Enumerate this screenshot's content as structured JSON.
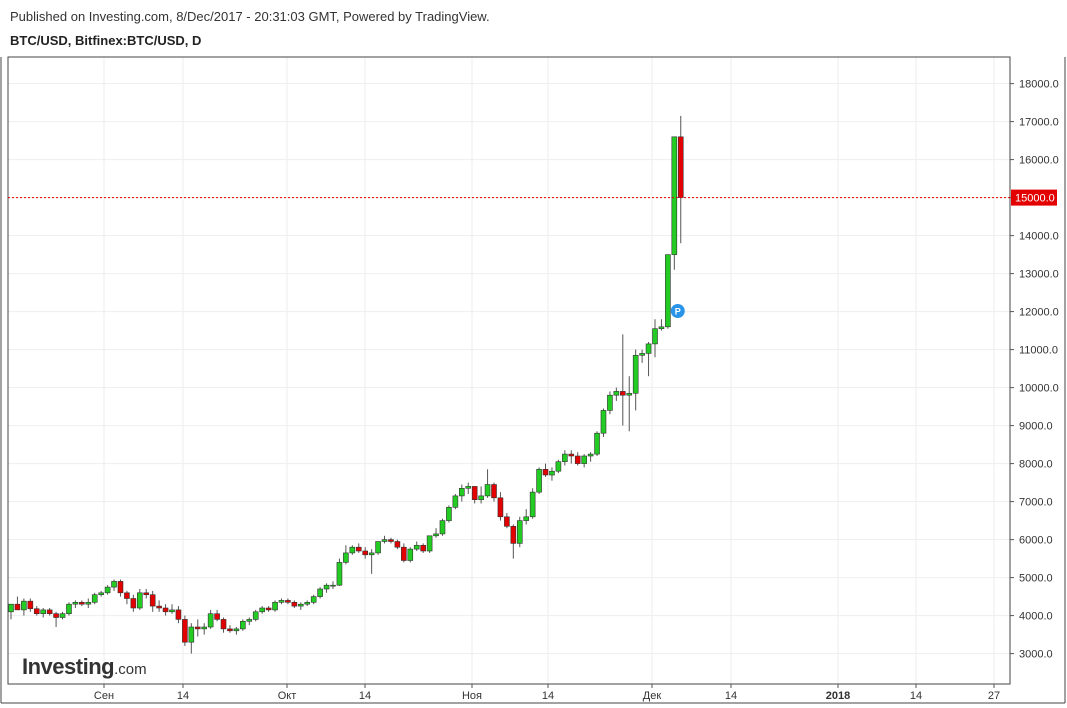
{
  "header": {
    "published": "Published on Investing.com, 8/Dec/2017 - 20:31:03 GMT, Powered by TradingView.",
    "symbol": "BTC/USD, Bitfinex:BTC/USD, D"
  },
  "logo": {
    "main": "Investing",
    "suffix": ".com"
  },
  "colors": {
    "up": "#22cc22",
    "down": "#e30000",
    "wick": "#555555",
    "price_line": "#e30000",
    "marker": "#2a95e8"
  },
  "chart_data": {
    "type": "candlestick",
    "price_label": "15000.0",
    "marker_label": "P",
    "ylim": [
      2200,
      18700
    ],
    "y_ticks": [
      "3000.0",
      "4000.0",
      "5000.0",
      "6000.0",
      "7000.0",
      "8000.0",
      "9000.0",
      "10000.0",
      "11000.0",
      "12000.0",
      "13000.0",
      "14000.0",
      "15000.0",
      "16000.0",
      "17000.0",
      "18000.0"
    ],
    "x_ticks": [
      "Сен",
      "14",
      "Окт",
      "14",
      "Ноя",
      "14",
      "Дек",
      "14",
      "2018",
      "14",
      "27"
    ],
    "candles": [
      {
        "o": 4100,
        "h": 4300,
        "l": 3900,
        "c": 4300
      },
      {
        "o": 4300,
        "h": 4500,
        "l": 4150,
        "c": 4150
      },
      {
        "o": 4150,
        "h": 4450,
        "l": 4000,
        "c": 4380
      },
      {
        "o": 4380,
        "h": 4450,
        "l": 4100,
        "c": 4180
      },
      {
        "o": 4180,
        "h": 4250,
        "l": 4000,
        "c": 4050
      },
      {
        "o": 4050,
        "h": 4200,
        "l": 3950,
        "c": 4150
      },
      {
        "o": 4150,
        "h": 4200,
        "l": 4000,
        "c": 4050
      },
      {
        "o": 4050,
        "h": 4100,
        "l": 3700,
        "c": 3950
      },
      {
        "o": 3950,
        "h": 4100,
        "l": 3900,
        "c": 4050
      },
      {
        "o": 4050,
        "h": 4350,
        "l": 4000,
        "c": 4300
      },
      {
        "o": 4300,
        "h": 4400,
        "l": 4200,
        "c": 4350
      },
      {
        "o": 4350,
        "h": 4400,
        "l": 4250,
        "c": 4300
      },
      {
        "o": 4300,
        "h": 4450,
        "l": 4200,
        "c": 4350
      },
      {
        "o": 4350,
        "h": 4600,
        "l": 4300,
        "c": 4550
      },
      {
        "o": 4550,
        "h": 4650,
        "l": 4500,
        "c": 4600
      },
      {
        "o": 4600,
        "h": 4800,
        "l": 4550,
        "c": 4750
      },
      {
        "o": 4750,
        "h": 4950,
        "l": 4650,
        "c": 4900
      },
      {
        "o": 4900,
        "h": 4950,
        "l": 4500,
        "c": 4600
      },
      {
        "o": 4600,
        "h": 4650,
        "l": 4300,
        "c": 4450
      },
      {
        "o": 4450,
        "h": 4550,
        "l": 4100,
        "c": 4200
      },
      {
        "o": 4200,
        "h": 4700,
        "l": 4150,
        "c": 4600
      },
      {
        "o": 4600,
        "h": 4700,
        "l": 4450,
        "c": 4550
      },
      {
        "o": 4550,
        "h": 4650,
        "l": 4100,
        "c": 4250
      },
      {
        "o": 4250,
        "h": 4400,
        "l": 4100,
        "c": 4200
      },
      {
        "o": 4200,
        "h": 4300,
        "l": 4000,
        "c": 4100
      },
      {
        "o": 4100,
        "h": 4300,
        "l": 4050,
        "c": 4150
      },
      {
        "o": 4150,
        "h": 4250,
        "l": 3800,
        "c": 3900
      },
      {
        "o": 3900,
        "h": 4000,
        "l": 3200,
        "c": 3300
      },
      {
        "o": 3300,
        "h": 3800,
        "l": 3000,
        "c": 3700
      },
      {
        "o": 3700,
        "h": 3900,
        "l": 3450,
        "c": 3650
      },
      {
        "o": 3650,
        "h": 3800,
        "l": 3500,
        "c": 3700
      },
      {
        "o": 3700,
        "h": 4150,
        "l": 3650,
        "c": 4050
      },
      {
        "o": 4050,
        "h": 4150,
        "l": 3850,
        "c": 3900
      },
      {
        "o": 3900,
        "h": 3950,
        "l": 3550,
        "c": 3650
      },
      {
        "o": 3650,
        "h": 3750,
        "l": 3550,
        "c": 3600
      },
      {
        "o": 3600,
        "h": 3700,
        "l": 3500,
        "c": 3650
      },
      {
        "o": 3650,
        "h": 3900,
        "l": 3600,
        "c": 3850
      },
      {
        "o": 3850,
        "h": 3950,
        "l": 3750,
        "c": 3900
      },
      {
        "o": 3900,
        "h": 4150,
        "l": 3850,
        "c": 4100
      },
      {
        "o": 4100,
        "h": 4250,
        "l": 4050,
        "c": 4200
      },
      {
        "o": 4200,
        "h": 4250,
        "l": 4100,
        "c": 4150
      },
      {
        "o": 4150,
        "h": 4400,
        "l": 4100,
        "c": 4350
      },
      {
        "o": 4350,
        "h": 4450,
        "l": 4300,
        "c": 4400
      },
      {
        "o": 4400,
        "h": 4450,
        "l": 4300,
        "c": 4350
      },
      {
        "o": 4350,
        "h": 4400,
        "l": 4200,
        "c": 4250
      },
      {
        "o": 4250,
        "h": 4350,
        "l": 4150,
        "c": 4300
      },
      {
        "o": 4300,
        "h": 4400,
        "l": 4250,
        "c": 4350
      },
      {
        "o": 4350,
        "h": 4550,
        "l": 4300,
        "c": 4500
      },
      {
        "o": 4500,
        "h": 4750,
        "l": 4450,
        "c": 4700
      },
      {
        "o": 4700,
        "h": 4850,
        "l": 4600,
        "c": 4800
      },
      {
        "o": 4800,
        "h": 4900,
        "l": 4700,
        "c": 4800
      },
      {
        "o": 4800,
        "h": 5500,
        "l": 4780,
        "c": 5400
      },
      {
        "o": 5400,
        "h": 5850,
        "l": 5350,
        "c": 5650
      },
      {
        "o": 5650,
        "h": 5850,
        "l": 5600,
        "c": 5800
      },
      {
        "o": 5800,
        "h": 5900,
        "l": 5650,
        "c": 5700
      },
      {
        "o": 5700,
        "h": 5800,
        "l": 5500,
        "c": 5600
      },
      {
        "o": 5600,
        "h": 5750,
        "l": 5100,
        "c": 5650
      },
      {
        "o": 5650,
        "h": 5900,
        "l": 5600,
        "c": 5950
      },
      {
        "o": 5950,
        "h": 6100,
        "l": 5900,
        "c": 6000
      },
      {
        "o": 6000,
        "h": 6050,
        "l": 5900,
        "c": 5950
      },
      {
        "o": 5950,
        "h": 6000,
        "l": 5750,
        "c": 5800
      },
      {
        "o": 5800,
        "h": 5900,
        "l": 5400,
        "c": 5450
      },
      {
        "o": 5450,
        "h": 5800,
        "l": 5400,
        "c": 5750
      },
      {
        "o": 5750,
        "h": 5950,
        "l": 5700,
        "c": 5850
      },
      {
        "o": 5850,
        "h": 5900,
        "l": 5650,
        "c": 5700
      },
      {
        "o": 5700,
        "h": 6100,
        "l": 5650,
        "c": 6100
      },
      {
        "o": 6100,
        "h": 6300,
        "l": 6050,
        "c": 6150
      },
      {
        "o": 6150,
        "h": 6550,
        "l": 6100,
        "c": 6500
      },
      {
        "o": 6500,
        "h": 6900,
        "l": 6450,
        "c": 6850
      },
      {
        "o": 6850,
        "h": 7200,
        "l": 6800,
        "c": 7150
      },
      {
        "o": 7150,
        "h": 7450,
        "l": 7000,
        "c": 7350
      },
      {
        "o": 7350,
        "h": 7500,
        "l": 7200,
        "c": 7400
      },
      {
        "o": 7400,
        "h": 7400,
        "l": 6950,
        "c": 7050
      },
      {
        "o": 7050,
        "h": 7400,
        "l": 6950,
        "c": 7150
      },
      {
        "o": 7150,
        "h": 7850,
        "l": 7100,
        "c": 7450
      },
      {
        "o": 7450,
        "h": 7500,
        "l": 7000,
        "c": 7100
      },
      {
        "o": 7100,
        "h": 7250,
        "l": 6500,
        "c": 6600
      },
      {
        "o": 6600,
        "h": 6700,
        "l": 6300,
        "c": 6350
      },
      {
        "o": 6350,
        "h": 6400,
        "l": 5500,
        "c": 5900
      },
      {
        "o": 5900,
        "h": 6600,
        "l": 5800,
        "c": 6500
      },
      {
        "o": 6500,
        "h": 6800,
        "l": 6400,
        "c": 6600
      },
      {
        "o": 6600,
        "h": 7350,
        "l": 6550,
        "c": 7250
      },
      {
        "o": 7250,
        "h": 7900,
        "l": 7200,
        "c": 7850
      },
      {
        "o": 7850,
        "h": 8000,
        "l": 7650,
        "c": 7700
      },
      {
        "o": 7700,
        "h": 7900,
        "l": 7550,
        "c": 7800
      },
      {
        "o": 7800,
        "h": 8100,
        "l": 7750,
        "c": 8050
      },
      {
        "o": 8050,
        "h": 8350,
        "l": 7950,
        "c": 8250
      },
      {
        "o": 8250,
        "h": 8350,
        "l": 8000,
        "c": 8200
      },
      {
        "o": 8200,
        "h": 8300,
        "l": 7950,
        "c": 8000
      },
      {
        "o": 8000,
        "h": 8250,
        "l": 7900,
        "c": 8200
      },
      {
        "o": 8200,
        "h": 8300,
        "l": 8050,
        "c": 8250
      },
      {
        "o": 8250,
        "h": 8850,
        "l": 8200,
        "c": 8800
      },
      {
        "o": 8800,
        "h": 9450,
        "l": 8700,
        "c": 9400
      },
      {
        "o": 9400,
        "h": 9900,
        "l": 9300,
        "c": 9800
      },
      {
        "o": 9800,
        "h": 10000,
        "l": 9650,
        "c": 9900
      },
      {
        "o": 9900,
        "h": 11400,
        "l": 9000,
        "c": 9800
      },
      {
        "o": 9800,
        "h": 10300,
        "l": 8850,
        "c": 9850
      },
      {
        "o": 9850,
        "h": 11000,
        "l": 9400,
        "c": 10850
      },
      {
        "o": 10850,
        "h": 11000,
        "l": 10650,
        "c": 10900
      },
      {
        "o": 10900,
        "h": 11200,
        "l": 10300,
        "c": 11150
      },
      {
        "o": 11150,
        "h": 11800,
        "l": 10800,
        "c": 11550
      },
      {
        "o": 11550,
        "h": 11800,
        "l": 11500,
        "c": 11600
      },
      {
        "o": 11600,
        "h": 13500,
        "l": 11550,
        "c": 13500
      },
      {
        "o": 13500,
        "h": 16600,
        "l": 13100,
        "c": 16600
      },
      {
        "o": 16600,
        "h": 17150,
        "l": 13800,
        "c": 15000
      }
    ]
  }
}
